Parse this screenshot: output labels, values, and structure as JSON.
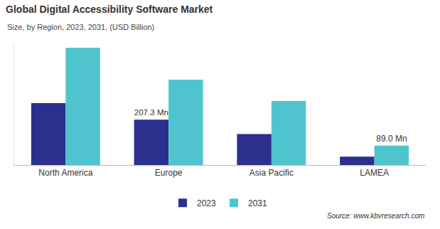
{
  "chart_data": {
    "type": "bar",
    "title": "Global Digital Accessibility Software Market",
    "subtitle": "Size, by Region, 2023, 2031, (USD Billion)",
    "source": "Source: www.kbvresearch.com",
    "categories": [
      "North America",
      "Europe",
      "Asia Pacific",
      "LAMEA"
    ],
    "series": [
      {
        "name": "2023",
        "color": "#2b2f8e",
        "values": [
          283,
          207.3,
          142,
          38
        ],
        "value_labels": [
          null,
          "207.3 Mn",
          null,
          null
        ]
      },
      {
        "name": "2031",
        "color": "#4fc4ce",
        "values": [
          536,
          391,
          293,
          89.0
        ],
        "value_labels": [
          null,
          null,
          null,
          "89.0 Mn"
        ]
      }
    ],
    "ylim": [
      0,
      560
    ],
    "data_labels": true,
    "tick_labels": "x",
    "grid": false,
    "legend": "bottom"
  }
}
